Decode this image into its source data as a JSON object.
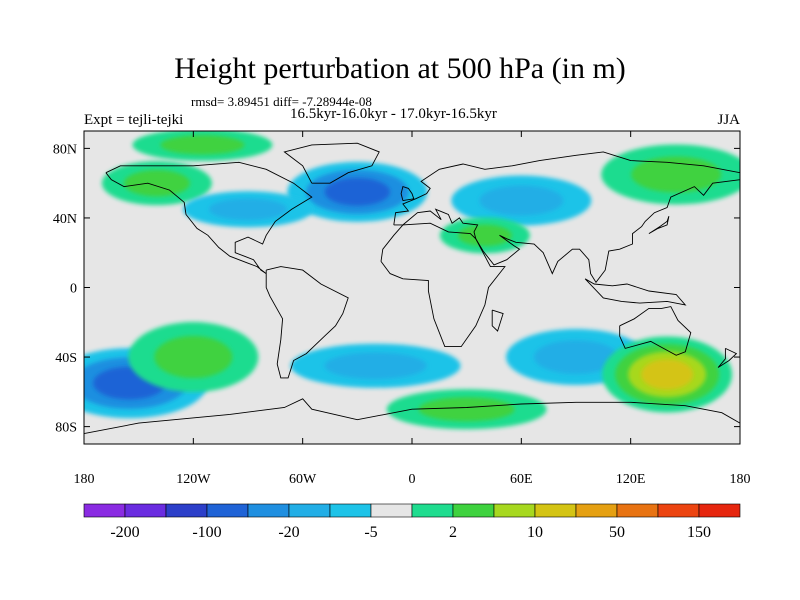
{
  "chart_data": {
    "type": "heatmap",
    "title": "Height perturbation at 500 hPa (in m)",
    "stats_text": "rmsd= 3.89451 diff= -7.28944e-08",
    "subtitle": "16.5kyr-16.0kyr - 17.0kyr-16.5kyr",
    "left_label": "Expt = tejli-tejki",
    "right_label": "JJA",
    "x_ticks": [
      "180",
      "120W",
      "60W",
      "0",
      "60E",
      "120E",
      "180"
    ],
    "y_ticks": [
      "80N",
      "40N",
      "0",
      "40S",
      "80S"
    ],
    "xlim": [
      -180,
      180
    ],
    "ylim": [
      -90,
      90
    ],
    "colorbar": {
      "labels": [
        "-200",
        "-100",
        "-20",
        "-5",
        "2",
        "10",
        "50",
        "150"
      ],
      "colors": [
        "#8a2be2",
        "#6a2ce0",
        "#2c3fc9",
        "#1f63d6",
        "#1f8fe0",
        "#22aee6",
        "#1ec3e8",
        "#e6e6e6",
        "#1fdc8f",
        "#3fd23f",
        "#a7d81f",
        "#d4c414",
        "#e5a012",
        "#e87312",
        "#ec4410",
        "#e6260e"
      ]
    },
    "anomaly_regions": [
      {
        "lon": -115,
        "lat": 82,
        "value": 5,
        "sign": "positive"
      },
      {
        "lon": -140,
        "lat": 60,
        "value": 5,
        "sign": "positive"
      },
      {
        "lon": -30,
        "lat": 55,
        "value": -20,
        "sign": "negative"
      },
      {
        "lon": -90,
        "lat": 45,
        "value": -5,
        "sign": "negative"
      },
      {
        "lon": 60,
        "lat": 50,
        "value": -5,
        "sign": "negative"
      },
      {
        "lon": 40,
        "lat": 30,
        "value": 5,
        "sign": "positive"
      },
      {
        "lon": 145,
        "lat": 65,
        "value": 5,
        "sign": "positive"
      },
      {
        "lon": -155,
        "lat": -55,
        "value": -20,
        "sign": "negative"
      },
      {
        "lon": -120,
        "lat": -40,
        "value": 5,
        "sign": "positive"
      },
      {
        "lon": -20,
        "lat": -45,
        "value": -5,
        "sign": "negative"
      },
      {
        "lon": 90,
        "lat": -40,
        "value": -5,
        "sign": "negative"
      },
      {
        "lon": 140,
        "lat": -50,
        "value": 30,
        "sign": "positive"
      },
      {
        "lon": 30,
        "lat": -70,
        "value": 5,
        "sign": "positive"
      }
    ]
  }
}
